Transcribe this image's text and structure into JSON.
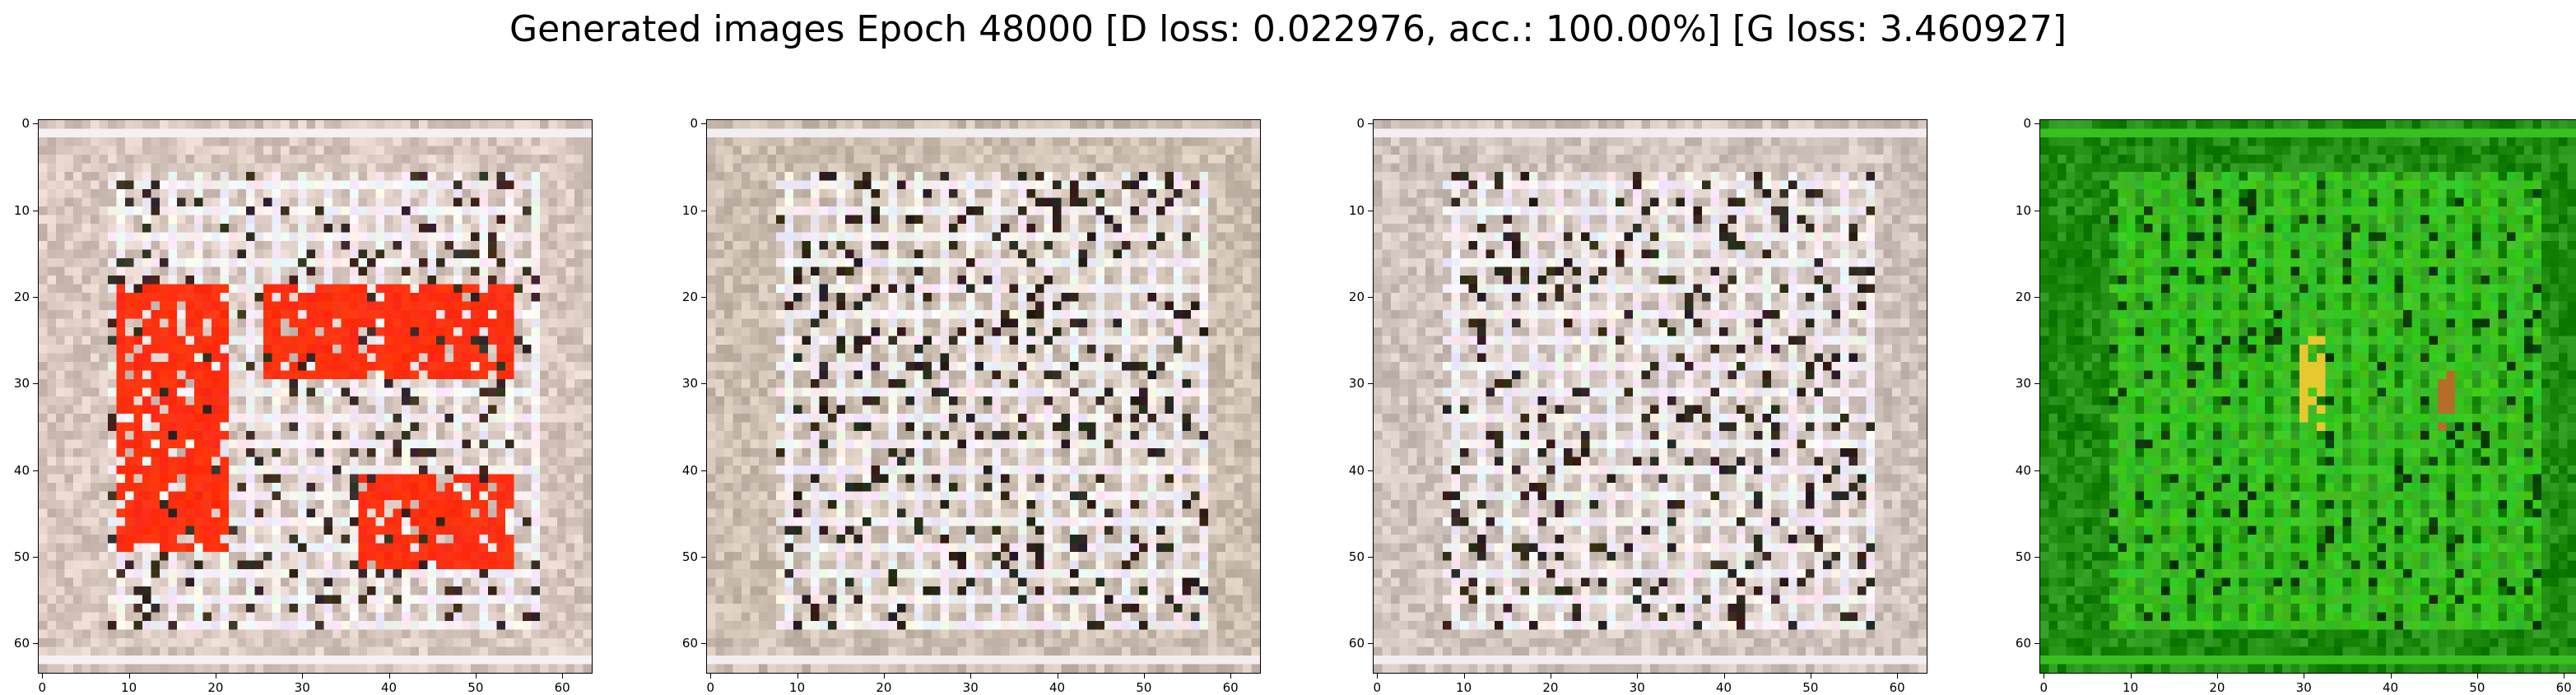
{
  "figure": {
    "title": "Generated images Epoch 48000 [D loss: 0.022976, acc.: 100.00%] [G loss: 3.460927]"
  },
  "axis_ticks": {
    "x": [
      "0",
      "10",
      "20",
      "30",
      "40",
      "50",
      "60"
    ],
    "y": [
      "0",
      "10",
      "20",
      "30",
      "40",
      "50",
      "60"
    ],
    "tick_values": [
      0,
      10,
      20,
      30,
      40,
      50,
      60
    ],
    "image_extent": [
      -0.5,
      63.5
    ]
  },
  "panels": [
    {
      "id": "sample-1",
      "palette": "beige-red",
      "base_color": "#d8c8c0",
      "accent_color": "#ff3010",
      "grid_color": "#f4f0f4",
      "dark_color": "#3a2c22"
    },
    {
      "id": "sample-2",
      "palette": "beige-grid",
      "base_color": "#cdbfb2",
      "accent_color": "#ffffff",
      "grid_color": "#f2eef2",
      "dark_color": "#2b231b"
    },
    {
      "id": "sample-3",
      "palette": "beige-grid",
      "base_color": "#d0c4bc",
      "accent_color": "#ffffff",
      "grid_color": "#f2eef2",
      "dark_color": "#2e241c"
    },
    {
      "id": "sample-4",
      "palette": "green",
      "base_color": "#1e8a10",
      "accent_color": "#e8c830",
      "grid_color": "#38c020",
      "dark_color": "#0a3a08"
    }
  ]
}
